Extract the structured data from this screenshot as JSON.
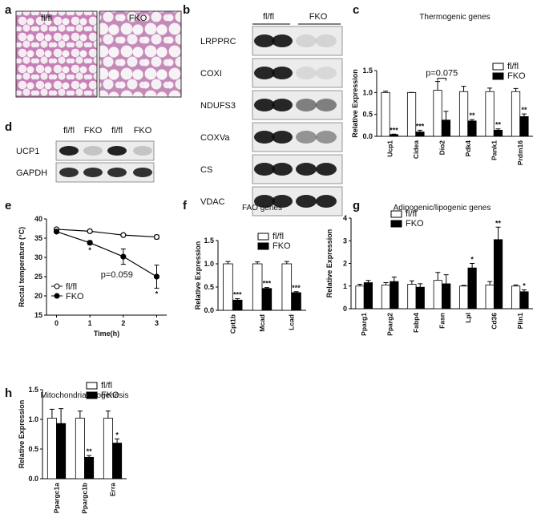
{
  "histology": {
    "panel": "a",
    "labels": [
      "fl/fl",
      "FKO"
    ]
  },
  "blot_b": {
    "panel": "b",
    "groups": [
      "fl/fl",
      "FKO"
    ],
    "proteins": [
      "LRPPRC",
      "COXI",
      "NDUFS3",
      "COXVa",
      "CS",
      "VDAC"
    ]
  },
  "blot_d": {
    "panel": "d",
    "lanes": [
      "fl/fl",
      "FKO",
      "fl/fl",
      "FKO"
    ],
    "proteins": [
      "UCP1",
      "GAPDH"
    ]
  },
  "chart_data": [
    {
      "type": "bar",
      "panel": "c",
      "title": "Thermogenic genes",
      "ylabel": "Relative Expression",
      "categories": [
        "Ucp1",
        "Cidea",
        "Dio2",
        "Pdk4",
        "Pank1",
        "Prdm16"
      ],
      "series": [
        {
          "name": "fl/fl",
          "color": "#ffffff",
          "values": [
            1.0,
            1.0,
            1.05,
            1.02,
            1.02,
            1.02
          ],
          "errors": [
            0.03,
            0.0,
            0.2,
            0.12,
            0.08,
            0.07
          ],
          "significance": [
            null,
            null,
            null,
            null,
            null,
            null
          ]
        },
        {
          "name": "FKO",
          "color": "#000000",
          "values": [
            0.04,
            0.1,
            0.37,
            0.35,
            0.14,
            0.45
          ],
          "errors": [
            0.01,
            0.04,
            0.2,
            0.03,
            0.03,
            0.06
          ],
          "significance": [
            "***",
            "***",
            null,
            "**",
            "**",
            "**"
          ]
        }
      ],
      "annotations": [
        {
          "text": "p=0.075",
          "category": "Dio2"
        }
      ],
      "ylim": [
        0,
        1.5
      ],
      "yticks": [
        {
          "value": 0,
          "label": "0.0"
        },
        0.5,
        {
          "value": 1,
          "label": "1.0"
        },
        1.5
      ],
      "legend": "upper right"
    },
    {
      "type": "line",
      "panel": "e",
      "xlabel": "Time(h)",
      "ylabel": "Rectal temperature (°C)",
      "x": [
        0,
        1,
        2,
        3
      ],
      "series": [
        {
          "name": "fl/fl",
          "color": "#000000",
          "marker": "open",
          "values": [
            37.3,
            36.8,
            35.8,
            35.3
          ],
          "errors": [
            0.3,
            0.4,
            0.3,
            0.5
          ]
        },
        {
          "name": "FKO",
          "color": "#000000",
          "marker": "filled",
          "values": [
            36.7,
            33.8,
            30.2,
            25.0
          ],
          "errors": [
            0.3,
            0.5,
            2.0,
            3.0
          ]
        }
      ],
      "annotations": [
        {
          "text": "*",
          "x": 1
        },
        {
          "text": "p=0.059",
          "x": 2
        },
        {
          "text": "*",
          "x": 3
        }
      ],
      "xlim": [
        -0.3,
        3.3
      ],
      "xticks": [
        0,
        1,
        2,
        3
      ],
      "ylim": [
        15,
        40
      ],
      "yticks": [
        15,
        20,
        25,
        30,
        35,
        40
      ],
      "legend": "lower left"
    },
    {
      "type": "bar",
      "panel": "f",
      "title": "FAO genes",
      "ylabel": "Relative Expression",
      "categories": [
        "Cpt1b",
        "Mcad",
        "Lcad"
      ],
      "series": [
        {
          "name": "fl/fl",
          "color": "#ffffff",
          "values": [
            1.0,
            1.0,
            1.0
          ],
          "errors": [
            0.05,
            0.04,
            0.05
          ],
          "significance": [
            null,
            null,
            null
          ]
        },
        {
          "name": "FKO",
          "color": "#000000",
          "values": [
            0.22,
            0.47,
            0.38
          ],
          "errors": [
            0.03,
            0.02,
            0.02
          ],
          "significance": [
            "***",
            "***",
            "***"
          ]
        }
      ],
      "ylim": [
        0,
        1.5
      ],
      "yticks": [
        {
          "value": 0,
          "label": "0.0"
        },
        0.5,
        {
          "value": 1,
          "label": "1.0"
        },
        1.5
      ],
      "legend": "upper left"
    },
    {
      "type": "bar",
      "panel": "g",
      "title": "Adipogenic/lipogenic genes",
      "ylabel": "Relative Expression",
      "categories": [
        "Pparg1",
        "Pparg2",
        "Fabp4",
        "Fasn",
        "Lpl",
        "Cd36",
        "Plin1"
      ],
      "series": [
        {
          "name": "fl/fl",
          "color": "#ffffff",
          "values": [
            1.0,
            1.05,
            1.08,
            1.25,
            1.0,
            1.05,
            1.0
          ],
          "errors": [
            0.08,
            0.1,
            0.15,
            0.35,
            0.03,
            0.15,
            0.05
          ],
          "significance": [
            null,
            null,
            null,
            null,
            null,
            null,
            null
          ]
        },
        {
          "name": "FKO",
          "color": "#000000",
          "values": [
            1.15,
            1.2,
            0.95,
            1.1,
            1.8,
            3.05,
            0.75
          ],
          "errors": [
            0.1,
            0.2,
            0.15,
            0.4,
            0.2,
            0.55,
            0.08
          ],
          "significance": [
            null,
            null,
            null,
            null,
            "*",
            "**",
            "*"
          ]
        }
      ],
      "ylim": [
        0,
        4
      ],
      "yticks": [
        0,
        1,
        2,
        3,
        4
      ],
      "legend": "upper left"
    },
    {
      "type": "bar",
      "panel": "h",
      "title": "Mitochondrial biogenesis",
      "ylabel": "Relative Expression",
      "categories": [
        "Ppargc1a",
        "Ppargc1b",
        "Erra"
      ],
      "series": [
        {
          "name": "fl/fl",
          "color": "#ffffff",
          "values": [
            1.02,
            1.02,
            1.02
          ],
          "errors": [
            0.15,
            0.12,
            0.12
          ],
          "significance": [
            null,
            null,
            null
          ]
        },
        {
          "name": "FKO",
          "color": "#000000",
          "values": [
            0.93,
            0.36,
            0.6
          ],
          "errors": [
            0.25,
            0.03,
            0.07
          ],
          "significance": [
            null,
            "**",
            "*"
          ]
        }
      ],
      "ylim": [
        0,
        1.5
      ],
      "yticks": [
        {
          "value": 0,
          "label": "0.0"
        },
        0.5,
        {
          "value": 1,
          "label": "1.0"
        },
        1.5
      ],
      "legend": "upper right"
    }
  ]
}
